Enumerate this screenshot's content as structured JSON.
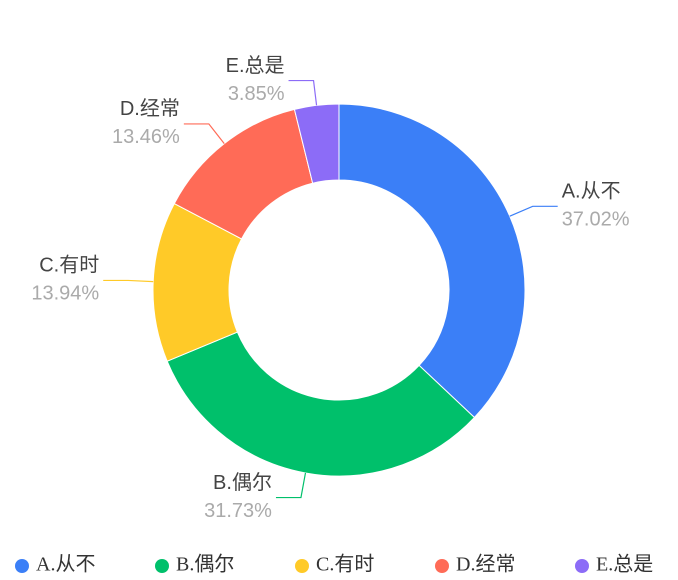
{
  "chart_data": {
    "type": "donut",
    "categories": [
      "A.从不",
      "B.偶尔",
      "C.有时",
      "D.经常",
      "E.总是"
    ],
    "values": [
      37.02,
      31.73,
      13.94,
      13.46,
      3.85
    ],
    "value_labels": [
      "37.02%",
      "31.73%",
      "13.94%",
      "13.46%",
      "3.85%"
    ],
    "colors": [
      "#3b7ff7",
      "#00c06b",
      "#ffca28",
      "#ff6b57",
      "#8c6cf7"
    ],
    "legend": "bottom"
  }
}
